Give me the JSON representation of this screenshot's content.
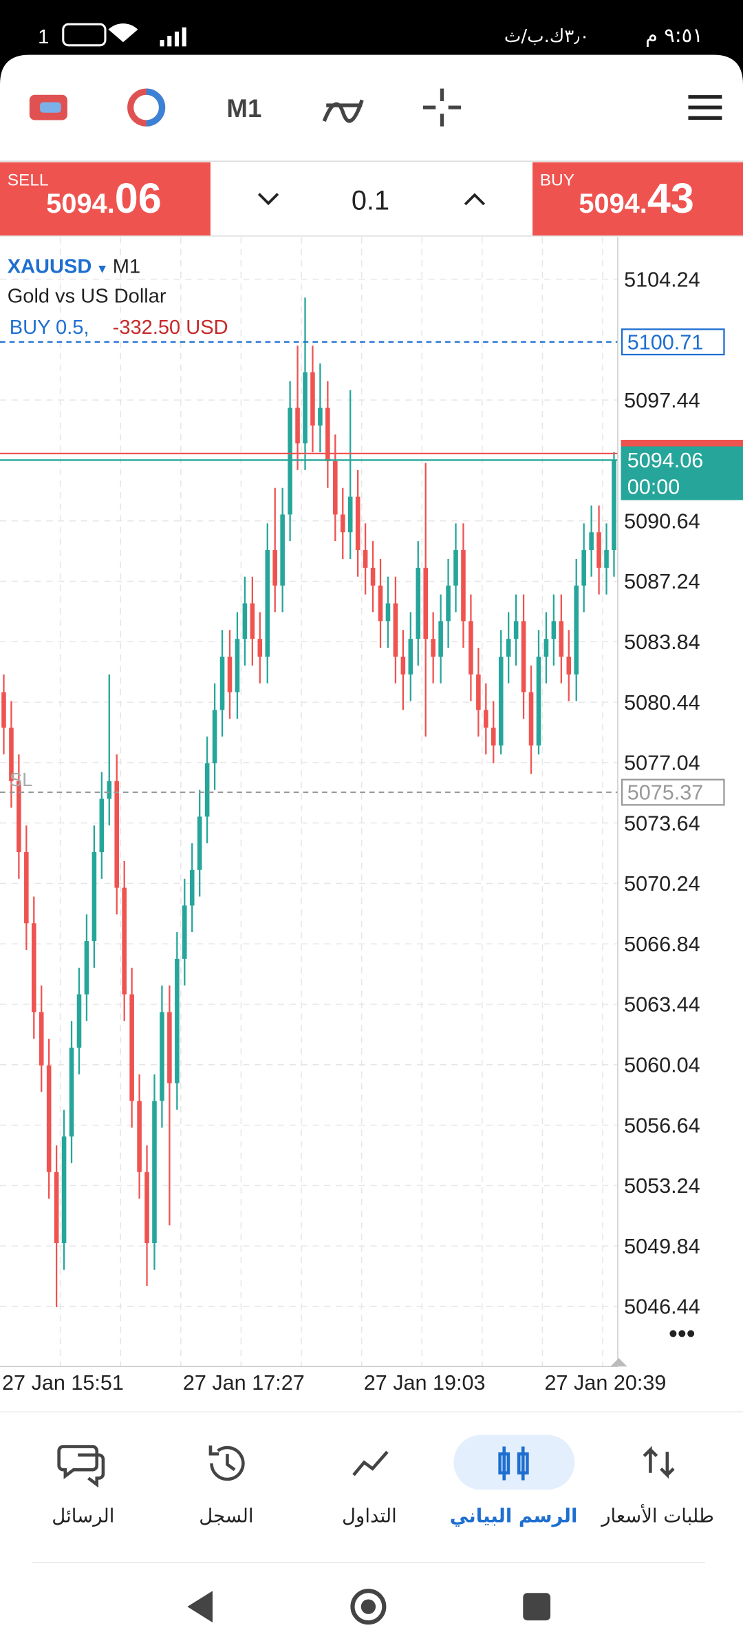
{
  "status_bar": {
    "time": "٩:٥١ م",
    "speed": "٣٫٠ك.ب/ث",
    "battery": "1"
  },
  "toolbar": {
    "timeframe": "M1"
  },
  "trade_panel": {
    "sell_label": "SELL",
    "sell_price_main": "5094.",
    "sell_price_big": "06",
    "volume": "0.1",
    "buy_label": "BUY",
    "buy_price_main": "5094.",
    "buy_price_big": "43"
  },
  "chart_data": {
    "type": "candlestick",
    "symbol": "XAUUSD",
    "timeframe": "M1",
    "description": "Gold vs US Dollar",
    "position_label": "BUY 0.5,",
    "position_profit": "-332.50 USD",
    "categories": [
      "27 Jan 15:51",
      null,
      null,
      null,
      null,
      null,
      null,
      null,
      null,
      null,
      null,
      null,
      null,
      null,
      null,
      null,
      null,
      null,
      null,
      null,
      null,
      null,
      null,
      null,
      "27 Jan 17:27",
      null,
      null,
      null,
      null,
      null,
      null,
      null,
      null,
      null,
      null,
      null,
      null,
      null,
      null,
      null,
      null,
      null,
      null,
      null,
      null,
      null,
      null,
      null,
      "27 Jan 19:03",
      null,
      null,
      null,
      null,
      null,
      null,
      null,
      null,
      null,
      null,
      null,
      null,
      null,
      null,
      null,
      null,
      null,
      null,
      null,
      null,
      null,
      null,
      null,
      "27 Jan 20:39",
      null,
      null,
      null,
      null,
      null,
      null,
      null,
      null,
      null
    ],
    "open": [
      5081,
      5079,
      5076,
      5072,
      5068,
      5063,
      5060,
      5054,
      5050,
      5056,
      5061,
      5064,
      5067,
      5072,
      5075,
      5076,
      5070,
      5064,
      5058,
      5054,
      5050,
      5058,
      5063,
      5059,
      5066,
      5069,
      5071,
      5074,
      5077,
      5080,
      5083,
      5081,
      5084,
      5086,
      5084,
      5083,
      5089,
      5087,
      5091,
      5097,
      5095,
      5099,
      5096,
      5097,
      5094,
      5091,
      5090,
      5092,
      5089,
      5088,
      5087,
      5085,
      5086,
      5083,
      5082,
      5084,
      5088,
      5084,
      5083,
      5085,
      5087,
      5089,
      5085,
      5082,
      5080,
      5079,
      5078,
      5083,
      5084,
      5085,
      5081,
      5078,
      5083,
      5084,
      5085,
      5083,
      5082,
      5087,
      5089,
      5090,
      5088,
      5089
    ],
    "high": [
      5082,
      5080.5,
      5077.5,
      5073.5,
      5069.5,
      5064.5,
      5061.5,
      5055.5,
      5057.5,
      5062.5,
      5065.5,
      5068.5,
      5073.5,
      5076.5,
      5082,
      5077.5,
      5071.5,
      5065.5,
      5059.5,
      5055.5,
      5059.5,
      5064.5,
      5064.5,
      5067.5,
      5070.5,
      5072.5,
      5075.5,
      5078.5,
      5081.5,
      5084.5,
      5084.5,
      5085.5,
      5087.5,
      5087.5,
      5085.5,
      5090.5,
      5092.5,
      5092.5,
      5098.5,
      5100.5,
      5103.2,
      5100.5,
      5099.5,
      5098.5,
      5095.5,
      5092.5,
      5098,
      5093.5,
      5090.5,
      5089.5,
      5088.5,
      5087.5,
      5087.5,
      5084.5,
      5085.5,
      5089.5,
      5093.9,
      5085.5,
      5086.5,
      5088.5,
      5090.5,
      5090.5,
      5086.5,
      5083.5,
      5081.5,
      5080.5,
      5084.5,
      5085.5,
      5086.5,
      5086.5,
      5082.5,
      5084.5,
      5085.5,
      5086.5,
      5086.5,
      5084.5,
      5088.5,
      5090.5,
      5091.5,
      5091.5,
      5090.5,
      5094.5
    ],
    "low": [
      5077.5,
      5074.5,
      5070.5,
      5066.5,
      5061.5,
      5058.5,
      5052.5,
      5046.4,
      5048.5,
      5054.5,
      5059.5,
      5062.5,
      5065.5,
      5070.5,
      5073.5,
      5068.5,
      5062.5,
      5056.5,
      5052.5,
      5047.6,
      5048.5,
      5056.5,
      5051,
      5057.5,
      5064.5,
      5067.5,
      5069.5,
      5072.5,
      5075.5,
      5078.5,
      5079.5,
      5079.5,
      5082.5,
      5082.5,
      5081.5,
      5081.5,
      5085.5,
      5085.5,
      5089.5,
      5093.5,
      5093.5,
      5094.5,
      5094.5,
      5092.5,
      5089.5,
      5088.5,
      5088.5,
      5087.5,
      5086.5,
      5085.5,
      5083.5,
      5083.5,
      5081.5,
      5080,
      5080.5,
      5082.5,
      5078.5,
      5081.5,
      5081.5,
      5083.5,
      5085.5,
      5083.5,
      5080.5,
      5078.5,
      5077.5,
      5077,
      5077.5,
      5081.5,
      5082.5,
      5079.5,
      5076.4,
      5077.5,
      5081.5,
      5082.5,
      5081.5,
      5080.5,
      5080.5,
      5085.5,
      5087.5,
      5086.5,
      5086.5,
      5087.5
    ],
    "close": [
      5079,
      5076,
      5072,
      5068,
      5063,
      5060,
      5054,
      5050,
      5056,
      5061,
      5064,
      5067,
      5072,
      5075,
      5076,
      5070,
      5064,
      5058,
      5054,
      5050,
      5058,
      5063,
      5059,
      5066,
      5069,
      5071,
      5074,
      5077,
      5080,
      5083,
      5081,
      5084,
      5086,
      5084,
      5083,
      5089,
      5087,
      5091,
      5097,
      5095,
      5099,
      5096,
      5097,
      5094,
      5091,
      5090,
      5092,
      5089,
      5088,
      5087,
      5085,
      5086,
      5083,
      5082,
      5084,
      5088,
      5084,
      5083,
      5085,
      5087,
      5089,
      5085,
      5082,
      5080,
      5079,
      5078,
      5083,
      5084,
      5085,
      5081,
      5078,
      5083,
      5084,
      5085,
      5083,
      5082,
      5087,
      5089,
      5090,
      5088,
      5089,
      5094.06
    ],
    "up_color": "#26a69a",
    "down_color": "#ef5350",
    "ylim": [
      5043.06,
      5106.61
    ],
    "yticks": [
      5104.24,
      5097.44,
      5090.64,
      5087.24,
      5083.84,
      5080.44,
      5077.04,
      5073.64,
      5070.24,
      5066.84,
      5063.44,
      5060.04,
      5056.64,
      5053.24,
      5049.84,
      5046.44
    ],
    "grid": true,
    "position_line": 5100.71,
    "sl_line": 5075.37,
    "sl_label": "SL",
    "ask_line": 5094.43,
    "bid_line": 5094.06,
    "bid_time": "00:00"
  },
  "bottom_nav": {
    "items": [
      "الرسائل",
      "السجل",
      "التداول",
      "الرسم البياني",
      "طلبات الأسعار"
    ]
  }
}
